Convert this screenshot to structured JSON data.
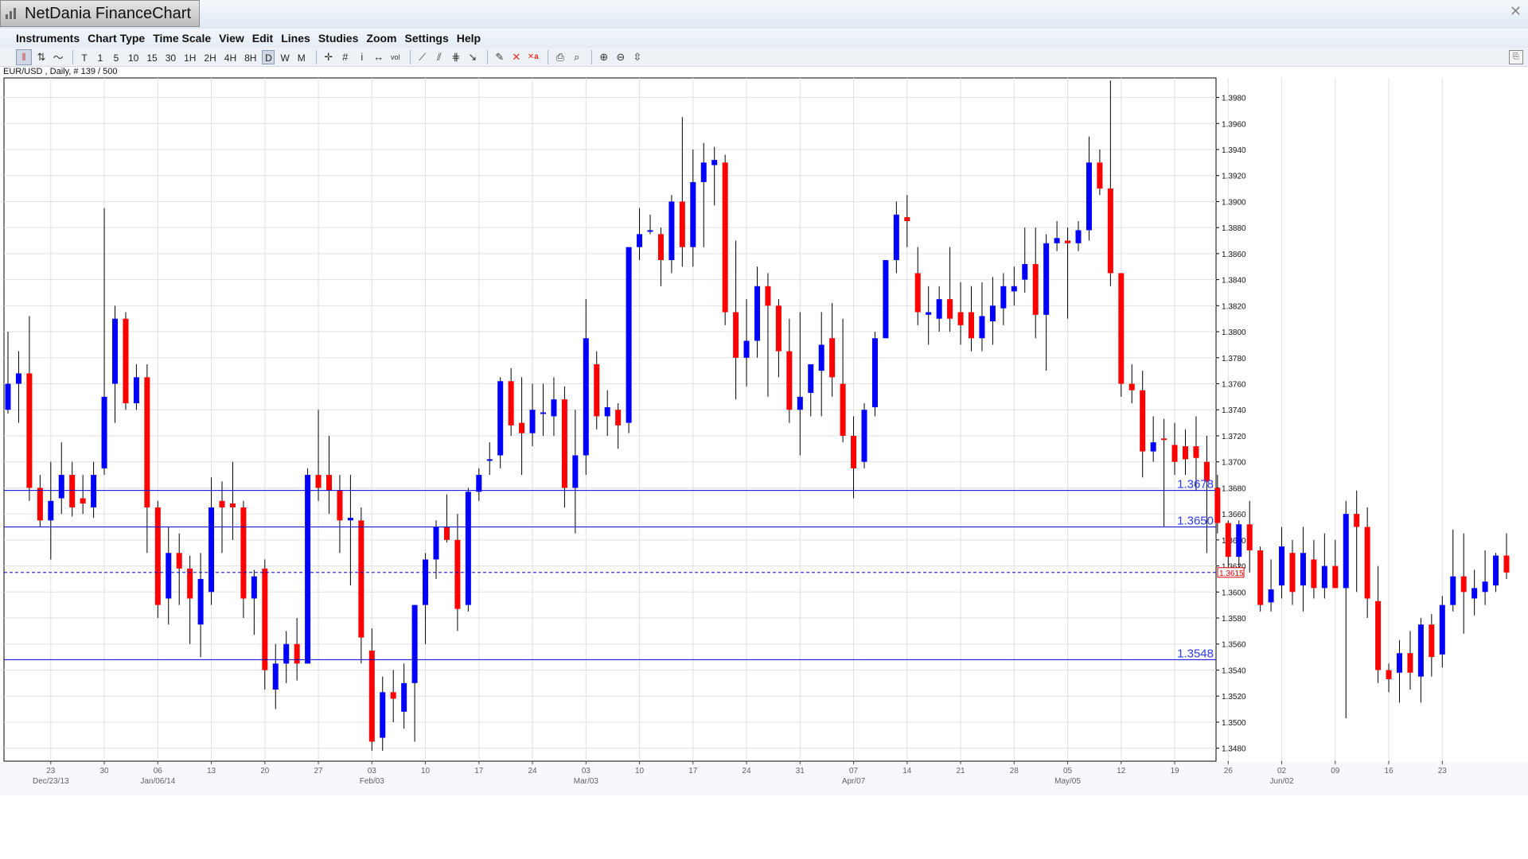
{
  "app": {
    "title": "NetDania FinanceChart"
  },
  "menu": [
    "Instruments",
    "Chart Type",
    "Time Scale",
    "View",
    "Edit",
    "Lines",
    "Studies",
    "Zoom",
    "Settings",
    "Help"
  ],
  "toolbar": {
    "timeframes": [
      "T",
      "1",
      "5",
      "10",
      "15",
      "30",
      "1H",
      "2H",
      "4H",
      "8H",
      "D",
      "W",
      "M"
    ],
    "active_timeframe": "D"
  },
  "chart_info": "EUR/USD , Daily, # 139 / 500",
  "colors": {
    "up": "#0000ff",
    "down": "#ff0000",
    "wick": "#000000",
    "hline": "#0000dd",
    "grid": "#e0e0e0",
    "label": "#2b3cff"
  },
  "chart_data": {
    "type": "candlestick",
    "symbol": "EUR/USD",
    "timeframe": "Daily",
    "ylim": [
      1.347,
      1.3995
    ],
    "y_ticks": [
      "1.3480",
      "1.3500",
      "1.3520",
      "1.3540",
      "1.3560",
      "1.3580",
      "1.3600",
      "1.3620",
      "1.3640",
      "1.3660",
      "1.3680",
      "1.3700",
      "1.3720",
      "1.3740",
      "1.3760",
      "1.3780",
      "1.3800",
      "1.3820",
      "1.3840",
      "1.3860",
      "1.3880",
      "1.3900",
      "1.3920",
      "1.3940",
      "1.3960",
      "1.3980"
    ],
    "x_ticks": [
      {
        "day": "23",
        "index": 4
      },
      {
        "day": "30",
        "index": 9
      },
      {
        "day": "06",
        "index": 14
      },
      {
        "day": "13",
        "index": 19
      },
      {
        "day": "20",
        "index": 24
      },
      {
        "day": "27",
        "index": 29
      },
      {
        "day": "03",
        "index": 34
      },
      {
        "day": "10",
        "index": 39
      },
      {
        "day": "17",
        "index": 44
      },
      {
        "day": "24",
        "index": 49
      },
      {
        "day": "03",
        "index": 54
      },
      {
        "day": "10",
        "index": 59
      },
      {
        "day": "17",
        "index": 64
      },
      {
        "day": "24",
        "index": 69
      },
      {
        "day": "31",
        "index": 74
      },
      {
        "day": "07",
        "index": 79
      },
      {
        "day": "14",
        "index": 84
      },
      {
        "day": "21",
        "index": 89
      },
      {
        "day": "28",
        "index": 94
      },
      {
        "day": "05",
        "index": 99
      },
      {
        "day": "12",
        "index": 104
      },
      {
        "day": "19",
        "index": 109
      },
      {
        "day": "26",
        "index": 114
      },
      {
        "day": "02",
        "index": 119
      },
      {
        "day": "09",
        "index": 124
      },
      {
        "day": "16",
        "index": 129
      },
      {
        "day": "23",
        "index": 134
      }
    ],
    "month_labels": [
      {
        "label": "Dec/23/13",
        "index": 4
      },
      {
        "label": "Jan/06/14",
        "index": 14
      },
      {
        "label": "Feb/03",
        "index": 34
      },
      {
        "label": "Mar/03",
        "index": 54
      },
      {
        "label": "Apr/07",
        "index": 79
      },
      {
        "label": "May/05",
        "index": 99
      },
      {
        "label": "Jun/02",
        "index": 119
      }
    ],
    "horizontal_lines": [
      {
        "value": 1.3678,
        "label": "1.3678",
        "style": "solid"
      },
      {
        "value": 1.365,
        "label": "1.3650",
        "style": "solid"
      },
      {
        "value": 1.3548,
        "label": "1.3548",
        "style": "solid"
      },
      {
        "value": 1.3615,
        "label": "1.3615",
        "style": "dashed"
      }
    ],
    "last_price": "1.3615",
    "candles": [
      {
        "o": 1.374,
        "h": 1.38,
        "l": 1.3737,
        "c": 1.376
      },
      {
        "o": 1.376,
        "h": 1.3785,
        "l": 1.373,
        "c": 1.3768
      },
      {
        "o": 1.3768,
        "h": 1.3812,
        "l": 1.367,
        "c": 1.368
      },
      {
        "o": 1.368,
        "h": 1.369,
        "l": 1.365,
        "c": 1.3655
      },
      {
        "o": 1.3655,
        "h": 1.37,
        "l": 1.3625,
        "c": 1.367
      },
      {
        "o": 1.3672,
        "h": 1.3715,
        "l": 1.366,
        "c": 1.369
      },
      {
        "o": 1.369,
        "h": 1.37,
        "l": 1.3658,
        "c": 1.3665
      },
      {
        "o": 1.3672,
        "h": 1.369,
        "l": 1.366,
        "c": 1.3668
      },
      {
        "o": 1.3665,
        "h": 1.37,
        "l": 1.3657,
        "c": 1.369
      },
      {
        "o": 1.3695,
        "h": 1.3895,
        "l": 1.369,
        "c": 1.375
      },
      {
        "o": 1.376,
        "h": 1.382,
        "l": 1.373,
        "c": 1.381
      },
      {
        "o": 1.381,
        "h": 1.3815,
        "l": 1.374,
        "c": 1.3745
      },
      {
        "o": 1.3745,
        "h": 1.3775,
        "l": 1.374,
        "c": 1.3765
      },
      {
        "o": 1.3765,
        "h": 1.3775,
        "l": 1.363,
        "c": 1.3665
      },
      {
        "o": 1.3665,
        "h": 1.367,
        "l": 1.358,
        "c": 1.359
      },
      {
        "o": 1.3595,
        "h": 1.365,
        "l": 1.3575,
        "c": 1.363
      },
      {
        "o": 1.363,
        "h": 1.3645,
        "l": 1.359,
        "c": 1.3618
      },
      {
        "o": 1.3618,
        "h": 1.3628,
        "l": 1.356,
        "c": 1.3595
      },
      {
        "o": 1.3575,
        "h": 1.363,
        "l": 1.355,
        "c": 1.361
      },
      {
        "o": 1.36,
        "h": 1.3688,
        "l": 1.359,
        "c": 1.3665
      },
      {
        "o": 1.367,
        "h": 1.3685,
        "l": 1.363,
        "c": 1.3665
      },
      {
        "o": 1.3668,
        "h": 1.37,
        "l": 1.364,
        "c": 1.3665
      },
      {
        "o": 1.3665,
        "h": 1.367,
        "l": 1.358,
        "c": 1.3595
      },
      {
        "o": 1.3595,
        "h": 1.3617,
        "l": 1.3567,
        "c": 1.3612
      },
      {
        "o": 1.3618,
        "h": 1.3625,
        "l": 1.3525,
        "c": 1.354
      },
      {
        "o": 1.3525,
        "h": 1.356,
        "l": 1.351,
        "c": 1.3545
      },
      {
        "o": 1.3545,
        "h": 1.357,
        "l": 1.353,
        "c": 1.356
      },
      {
        "o": 1.356,
        "h": 1.358,
        "l": 1.3532,
        "c": 1.3545
      },
      {
        "o": 1.3545,
        "h": 1.3695,
        "l": 1.3545,
        "c": 1.369
      },
      {
        "o": 1.369,
        "h": 1.374,
        "l": 1.367,
        "c": 1.368
      },
      {
        "o": 1.369,
        "h": 1.372,
        "l": 1.366,
        "c": 1.3678
      },
      {
        "o": 1.3678,
        "h": 1.369,
        "l": 1.363,
        "c": 1.3655
      },
      {
        "o": 1.3655,
        "h": 1.369,
        "l": 1.3605,
        "c": 1.3657
      },
      {
        "o": 1.3655,
        "h": 1.3665,
        "l": 1.3545,
        "c": 1.3565
      },
      {
        "o": 1.3555,
        "h": 1.3572,
        "l": 1.3478,
        "c": 1.3485
      },
      {
        "o": 1.3488,
        "h": 1.3535,
        "l": 1.3478,
        "c": 1.3523
      },
      {
        "o": 1.3523,
        "h": 1.354,
        "l": 1.35,
        "c": 1.3518
      },
      {
        "o": 1.3508,
        "h": 1.3545,
        "l": 1.3495,
        "c": 1.353
      },
      {
        "o": 1.353,
        "h": 1.359,
        "l": 1.3485,
        "c": 1.359
      },
      {
        "o": 1.359,
        "h": 1.363,
        "l": 1.356,
        "c": 1.3625
      },
      {
        "o": 1.3625,
        "h": 1.3655,
        "l": 1.361,
        "c": 1.365
      },
      {
        "o": 1.365,
        "h": 1.3675,
        "l": 1.3638,
        "c": 1.364
      },
      {
        "o": 1.364,
        "h": 1.366,
        "l": 1.357,
        "c": 1.3587
      },
      {
        "o": 1.359,
        "h": 1.368,
        "l": 1.3585,
        "c": 1.3677
      },
      {
        "o": 1.3677,
        "h": 1.3695,
        "l": 1.367,
        "c": 1.369
      },
      {
        "o": 1.3702,
        "h": 1.3715,
        "l": 1.369,
        "c": 1.3702
      },
      {
        "o": 1.3705,
        "h": 1.3765,
        "l": 1.3695,
        "c": 1.3762
      },
      {
        "o": 1.3762,
        "h": 1.3772,
        "l": 1.372,
        "c": 1.3728
      },
      {
        "o": 1.373,
        "h": 1.3765,
        "l": 1.369,
        "c": 1.3722
      },
      {
        "o": 1.3722,
        "h": 1.376,
        "l": 1.3712,
        "c": 1.374
      },
      {
        "o": 1.3738,
        "h": 1.376,
        "l": 1.372,
        "c": 1.3738
      },
      {
        "o": 1.3735,
        "h": 1.3765,
        "l": 1.372,
        "c": 1.3748
      },
      {
        "o": 1.3748,
        "h": 1.3758,
        "l": 1.3665,
        "c": 1.368
      },
      {
        "o": 1.368,
        "h": 1.374,
        "l": 1.3645,
        "c": 1.3705
      },
      {
        "o": 1.3705,
        "h": 1.3825,
        "l": 1.369,
        "c": 1.3795
      },
      {
        "o": 1.3775,
        "h": 1.3785,
        "l": 1.3725,
        "c": 1.3735
      },
      {
        "o": 1.3735,
        "h": 1.3755,
        "l": 1.372,
        "c": 1.3742
      },
      {
        "o": 1.374,
        "h": 1.3745,
        "l": 1.371,
        "c": 1.3728
      },
      {
        "o": 1.373,
        "h": 1.3865,
        "l": 1.3722,
        "c": 1.3865
      },
      {
        "o": 1.3865,
        "h": 1.3895,
        "l": 1.3855,
        "c": 1.3875
      },
      {
        "o": 1.3877,
        "h": 1.389,
        "l": 1.3875,
        "c": 1.3878
      },
      {
        "o": 1.3875,
        "h": 1.388,
        "l": 1.3835,
        "c": 1.3855
      },
      {
        "o": 1.3855,
        "h": 1.3905,
        "l": 1.3845,
        "c": 1.39
      },
      {
        "o": 1.39,
        "h": 1.3965,
        "l": 1.385,
        "c": 1.3865
      },
      {
        "o": 1.3865,
        "h": 1.394,
        "l": 1.385,
        "c": 1.3915
      },
      {
        "o": 1.3915,
        "h": 1.3945,
        "l": 1.3865,
        "c": 1.393
      },
      {
        "o": 1.3928,
        "h": 1.3942,
        "l": 1.3897,
        "c": 1.3932
      },
      {
        "o": 1.393,
        "h": 1.3936,
        "l": 1.3805,
        "c": 1.3815
      },
      {
        "o": 1.3815,
        "h": 1.387,
        "l": 1.3748,
        "c": 1.378
      },
      {
        "o": 1.378,
        "h": 1.3825,
        "l": 1.3758,
        "c": 1.3793
      },
      {
        "o": 1.3793,
        "h": 1.385,
        "l": 1.378,
        "c": 1.3835
      },
      {
        "o": 1.3835,
        "h": 1.3845,
        "l": 1.375,
        "c": 1.382
      },
      {
        "o": 1.382,
        "h": 1.3825,
        "l": 1.3765,
        "c": 1.3785
      },
      {
        "o": 1.3785,
        "h": 1.381,
        "l": 1.373,
        "c": 1.374
      },
      {
        "o": 1.374,
        "h": 1.3815,
        "l": 1.3705,
        "c": 1.375
      },
      {
        "o": 1.3753,
        "h": 1.3775,
        "l": 1.3735,
        "c": 1.3775
      },
      {
        "o": 1.377,
        "h": 1.3815,
        "l": 1.3735,
        "c": 1.379
      },
      {
        "o": 1.3795,
        "h": 1.3822,
        "l": 1.375,
        "c": 1.3765
      },
      {
        "o": 1.376,
        "h": 1.381,
        "l": 1.3715,
        "c": 1.372
      },
      {
        "o": 1.372,
        "h": 1.3735,
        "l": 1.3672,
        "c": 1.3695
      },
      {
        "o": 1.37,
        "h": 1.3745,
        "l": 1.3695,
        "c": 1.374
      },
      {
        "o": 1.3742,
        "h": 1.38,
        "l": 1.3735,
        "c": 1.3795
      },
      {
        "o": 1.3795,
        "h": 1.3855,
        "l": 1.3795,
        "c": 1.3855
      },
      {
        "o": 1.3855,
        "h": 1.39,
        "l": 1.3845,
        "c": 1.389
      },
      {
        "o": 1.3888,
        "h": 1.3905,
        "l": 1.3865,
        "c": 1.3885
      },
      {
        "o": 1.3845,
        "h": 1.3865,
        "l": 1.3805,
        "c": 1.3815
      },
      {
        "o": 1.3813,
        "h": 1.3835,
        "l": 1.379,
        "c": 1.3815
      },
      {
        "o": 1.381,
        "h": 1.3835,
        "l": 1.38,
        "c": 1.3825
      },
      {
        "o": 1.3825,
        "h": 1.3865,
        "l": 1.38,
        "c": 1.381
      },
      {
        "o": 1.3815,
        "h": 1.3838,
        "l": 1.379,
        "c": 1.3805
      },
      {
        "o": 1.3815,
        "h": 1.3835,
        "l": 1.3785,
        "c": 1.3795
      },
      {
        "o": 1.3795,
        "h": 1.3838,
        "l": 1.3785,
        "c": 1.3812
      },
      {
        "o": 1.3808,
        "h": 1.3842,
        "l": 1.379,
        "c": 1.382
      },
      {
        "o": 1.3818,
        "h": 1.3845,
        "l": 1.3805,
        "c": 1.3835
      },
      {
        "o": 1.3831,
        "h": 1.385,
        "l": 1.382,
        "c": 1.3835
      },
      {
        "o": 1.384,
        "h": 1.388,
        "l": 1.383,
        "c": 1.3852
      },
      {
        "o": 1.3852,
        "h": 1.388,
        "l": 1.3795,
        "c": 1.3813
      },
      {
        "o": 1.3813,
        "h": 1.3875,
        "l": 1.377,
        "c": 1.3868
      },
      {
        "o": 1.3868,
        "h": 1.3885,
        "l": 1.3862,
        "c": 1.3872
      },
      {
        "o": 1.387,
        "h": 1.388,
        "l": 1.381,
        "c": 1.3868
      },
      {
        "o": 1.3868,
        "h": 1.3885,
        "l": 1.3862,
        "c": 1.3878
      },
      {
        "o": 1.3878,
        "h": 1.395,
        "l": 1.387,
        "c": 1.393
      },
      {
        "o": 1.393,
        "h": 1.394,
        "l": 1.3905,
        "c": 1.391
      },
      {
        "o": 1.391,
        "h": 1.3993,
        "l": 1.3835,
        "c": 1.3845
      },
      {
        "o": 1.3845,
        "h": 1.3845,
        "l": 1.375,
        "c": 1.376
      },
      {
        "o": 1.376,
        "h": 1.3775,
        "l": 1.3745,
        "c": 1.3755
      },
      {
        "o": 1.3755,
        "h": 1.377,
        "l": 1.3688,
        "c": 1.3708
      },
      {
        "o": 1.3708,
        "h": 1.3735,
        "l": 1.37,
        "c": 1.3715
      },
      {
        "o": 1.3718,
        "h": 1.3733,
        "l": 1.365,
        "c": 1.3717
      },
      {
        "o": 1.3713,
        "h": 1.373,
        "l": 1.369,
        "c": 1.37
      },
      {
        "o": 1.3712,
        "h": 1.3725,
        "l": 1.369,
        "c": 1.3702
      },
      {
        "o": 1.3712,
        "h": 1.3735,
        "l": 1.3678,
        "c": 1.3703
      },
      {
        "o": 1.37,
        "h": 1.372,
        "l": 1.363,
        "c": 1.3685
      },
      {
        "o": 1.368,
        "h": 1.369,
        "l": 1.3645,
        "c": 1.3653
      },
      {
        "o": 1.3653,
        "h": 1.3655,
        "l": 1.3617,
        "c": 1.3627
      },
      {
        "o": 1.3627,
        "h": 1.3655,
        "l": 1.3615,
        "c": 1.3652
      },
      {
        "o": 1.3652,
        "h": 1.367,
        "l": 1.3615,
        "c": 1.3632
      },
      {
        "o": 1.3632,
        "h": 1.3635,
        "l": 1.3585,
        "c": 1.359
      },
      {
        "o": 1.3592,
        "h": 1.3625,
        "l": 1.3585,
        "c": 1.3602
      },
      {
        "o": 1.3605,
        "h": 1.365,
        "l": 1.3595,
        "c": 1.3635
      },
      {
        "o": 1.363,
        "h": 1.364,
        "l": 1.359,
        "c": 1.36
      },
      {
        "o": 1.3605,
        "h": 1.365,
        "l": 1.3585,
        "c": 1.363
      },
      {
        "o": 1.3625,
        "h": 1.364,
        "l": 1.3595,
        "c": 1.3603
      },
      {
        "o": 1.3603,
        "h": 1.3645,
        "l": 1.3595,
        "c": 1.362
      },
      {
        "o": 1.362,
        "h": 1.364,
        "l": 1.3605,
        "c": 1.3603
      },
      {
        "o": 1.3603,
        "h": 1.367,
        "l": 1.3503,
        "c": 1.366
      },
      {
        "o": 1.366,
        "h": 1.3678,
        "l": 1.36,
        "c": 1.365
      },
      {
        "o": 1.365,
        "h": 1.3665,
        "l": 1.358,
        "c": 1.3595
      },
      {
        "o": 1.3593,
        "h": 1.362,
        "l": 1.353,
        "c": 1.354
      },
      {
        "o": 1.354,
        "h": 1.3545,
        "l": 1.3523,
        "c": 1.3533
      },
      {
        "o": 1.3538,
        "h": 1.3563,
        "l": 1.3515,
        "c": 1.3553
      },
      {
        "o": 1.3553,
        "h": 1.357,
        "l": 1.3525,
        "c": 1.3538
      },
      {
        "o": 1.3535,
        "h": 1.358,
        "l": 1.3515,
        "c": 1.3575
      },
      {
        "o": 1.3575,
        "h": 1.3583,
        "l": 1.3535,
        "c": 1.355
      },
      {
        "o": 1.3552,
        "h": 1.3597,
        "l": 1.3542,
        "c": 1.359
      },
      {
        "o": 1.359,
        "h": 1.3648,
        "l": 1.3585,
        "c": 1.3612
      },
      {
        "o": 1.3612,
        "h": 1.3645,
        "l": 1.3568,
        "c": 1.36
      },
      {
        "o": 1.3595,
        "h": 1.3617,
        "l": 1.3582,
        "c": 1.3603
      },
      {
        "o": 1.36,
        "h": 1.3632,
        "l": 1.359,
        "c": 1.3608
      },
      {
        "o": 1.3605,
        "h": 1.363,
        "l": 1.36,
        "c": 1.3628
      },
      {
        "o": 1.3628,
        "h": 1.3645,
        "l": 1.361,
        "c": 1.3615
      }
    ]
  }
}
